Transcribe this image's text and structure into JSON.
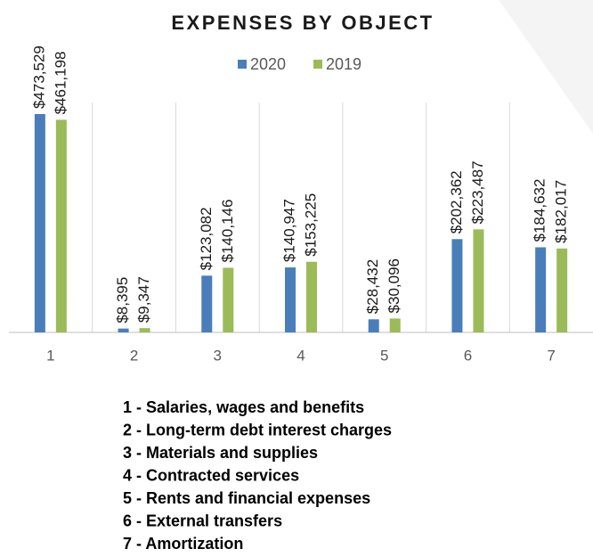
{
  "chart_data": {
    "type": "bar",
    "title": "EXPENSES BY OBJECT",
    "categories": [
      "1",
      "2",
      "3",
      "4",
      "5",
      "6",
      "7"
    ],
    "series": [
      {
        "name": "2020",
        "color": "#4a7ebb",
        "values": [
          473529,
          8395,
          123082,
          140947,
          28432,
          202362,
          184632
        ],
        "value_labels": [
          "$473,529",
          "$8,395",
          "$123,082",
          "$140,947",
          "$28,432",
          "$202,362",
          "$184,632"
        ]
      },
      {
        "name": "2019",
        "color": "#9bbb59",
        "values": [
          461198,
          9347,
          140146,
          153225,
          30096,
          223487,
          182017
        ],
        "value_labels": [
          "$461,198",
          "$9,347",
          "$140,146",
          "$153,225",
          "$30,096",
          "$223,487",
          "$182,017"
        ]
      }
    ],
    "legend": "top",
    "grid": true
  },
  "notes": [
    "1 - Salaries, wages and benefits",
    "2 - Long-term debt interest charges",
    "3 - Materials and supplies",
    "4 - Contracted services",
    "5 - Rents and financial expenses",
    "6 - External transfers",
    "7 - Amortization"
  ]
}
